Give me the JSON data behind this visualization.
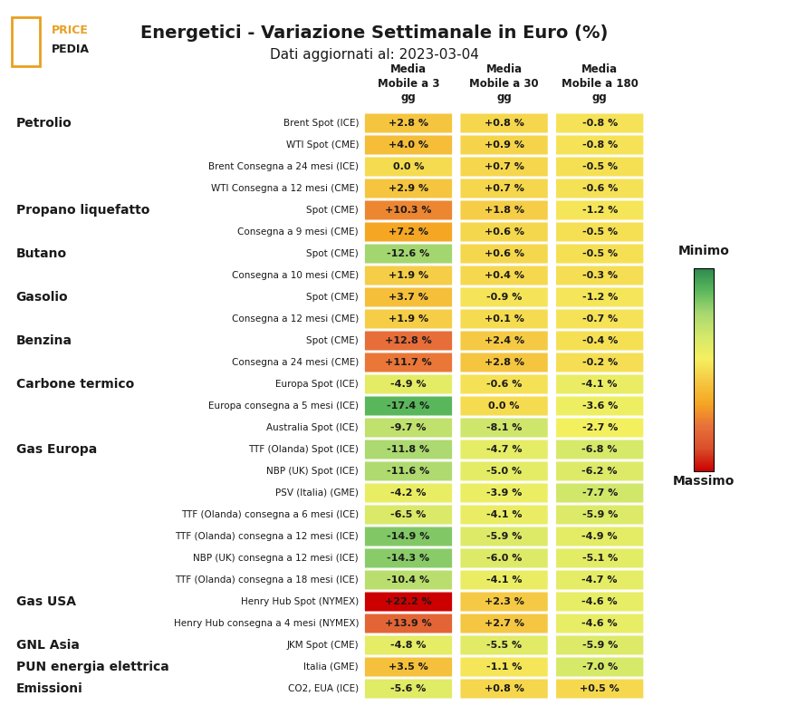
{
  "title": "Energetici - Variazione Settimanale in Euro (%)",
  "subtitle": "Dati aggiornati al: 2023-03-04",
  "col_headers": [
    "Media\nMobile a 3\ngg",
    "Media\nMobile a 30\ngg",
    "Media\nMobile a 180\ngg"
  ],
  "categories": [
    {
      "label": "Petrolio",
      "row": "Brent Spot (ICE)"
    },
    {
      "label": "",
      "row": "WTI Spot (CME)"
    },
    {
      "label": "",
      "row": "Brent Consegna a 24 mesi (ICE)"
    },
    {
      "label": "",
      "row": "WTI Consegna a 12 mesi (CME)"
    },
    {
      "label": "Propano liquefatto",
      "row": "Spot (CME)"
    },
    {
      "label": "",
      "row": "Consegna a 9 mesi (CME)"
    },
    {
      "label": "Butano",
      "row": "Spot (CME)"
    },
    {
      "label": "",
      "row": "Consegna a 10 mesi (CME)"
    },
    {
      "label": "Gasolio",
      "row": "Spot (CME)"
    },
    {
      "label": "",
      "row": "Consegna a 12 mesi (CME)"
    },
    {
      "label": "Benzina",
      "row": "Spot (CME)"
    },
    {
      "label": "",
      "row": "Consegna a 24 mesi (CME)"
    },
    {
      "label": "Carbone termico",
      "row": "Europa Spot (ICE)"
    },
    {
      "label": "",
      "row": "Europa consegna a 5 mesi (ICE)"
    },
    {
      "label": "",
      "row": "Australia Spot (ICE)"
    },
    {
      "label": "Gas Europa",
      "row": "TTF (Olanda) Spot (ICE)"
    },
    {
      "label": "",
      "row": "NBP (UK) Spot (ICE)"
    },
    {
      "label": "",
      "row": "PSV (Italia) (GME)"
    },
    {
      "label": "",
      "row": "TTF (Olanda) consegna a 6 mesi (ICE)"
    },
    {
      "label": "",
      "row": "TTF (Olanda) consegna a 12 mesi (ICE)"
    },
    {
      "label": "",
      "row": "NBP (UK) consegna a 12 mesi (ICE)"
    },
    {
      "label": "",
      "row": "TTF (Olanda) consegna a 18 mesi (ICE)"
    },
    {
      "label": "Gas USA",
      "row": "Henry Hub Spot (NYMEX)"
    },
    {
      "label": "",
      "row": "Henry Hub consegna a 4 mesi (NYMEX)"
    },
    {
      "label": "GNL Asia",
      "row": "JKM Spot (CME)"
    },
    {
      "label": "PUN energia elettrica",
      "row": "Italia (GME)"
    },
    {
      "label": "Emissioni",
      "row": "CO2, EUA (ICE)"
    }
  ],
  "values": [
    [
      2.8,
      0.8,
      -0.8
    ],
    [
      4.0,
      0.9,
      -0.8
    ],
    [
      0.0,
      0.7,
      -0.5
    ],
    [
      2.9,
      0.7,
      -0.6
    ],
    [
      10.3,
      1.8,
      -1.2
    ],
    [
      7.2,
      0.6,
      -0.5
    ],
    [
      -12.6,
      0.6,
      -0.5
    ],
    [
      1.9,
      0.4,
      -0.3
    ],
    [
      3.7,
      -0.9,
      -1.2
    ],
    [
      1.9,
      0.1,
      -0.7
    ],
    [
      12.8,
      2.4,
      -0.4
    ],
    [
      11.7,
      2.8,
      -0.2
    ],
    [
      -4.9,
      -0.6,
      -4.1
    ],
    [
      -17.4,
      0.0,
      -3.6
    ],
    [
      -9.7,
      -8.1,
      -2.7
    ],
    [
      -11.8,
      -4.7,
      -6.8
    ],
    [
      -11.6,
      -5.0,
      -6.2
    ],
    [
      -4.2,
      -3.9,
      -7.7
    ],
    [
      -6.5,
      -4.1,
      -5.9
    ],
    [
      -14.9,
      -5.9,
      -4.9
    ],
    [
      -14.3,
      -6.0,
      -5.1
    ],
    [
      -10.4,
      -4.1,
      -4.7
    ],
    [
      22.2,
      2.3,
      -4.6
    ],
    [
      13.9,
      2.7,
      -4.6
    ],
    [
      -4.8,
      -5.5,
      -5.9
    ],
    [
      3.5,
      -1.1,
      -7.0
    ],
    [
      -5.6,
      0.8,
      0.5
    ]
  ],
  "background_color": "#ffffff",
  "cell_text_color": "#1a1a1a",
  "category_label_color": "#1a1a1a",
  "title_color": "#1a1a1a",
  "colorbar_label_min": "Minimo",
  "colorbar_label_max": "Massimo"
}
